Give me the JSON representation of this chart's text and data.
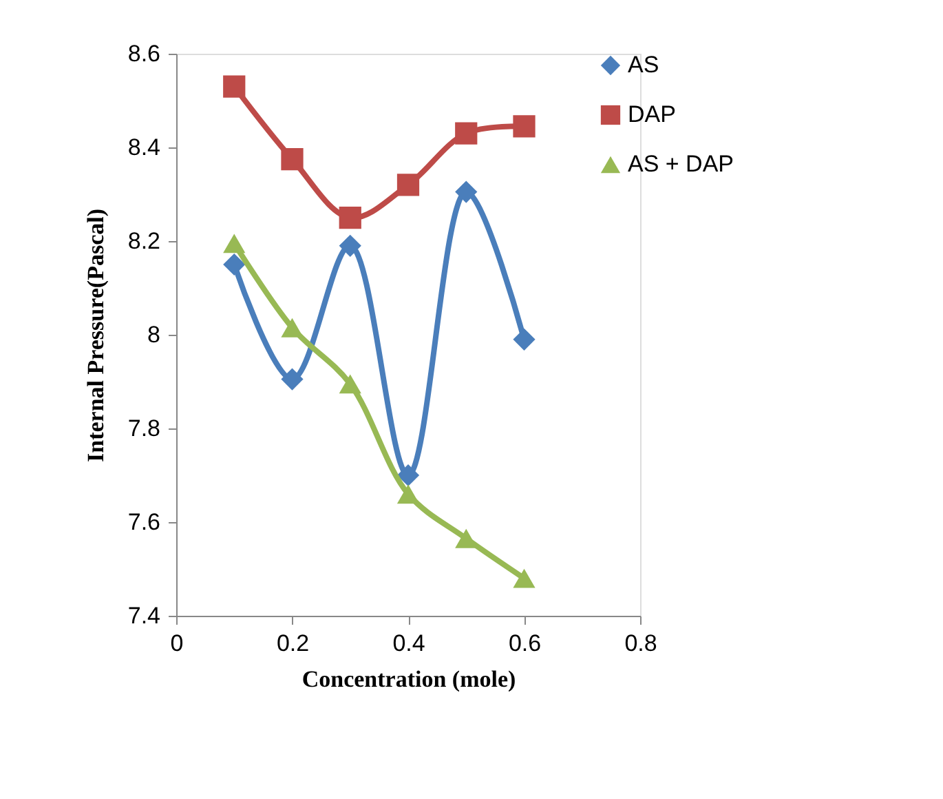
{
  "chart_data": {
    "type": "line",
    "xlabel": "Concentration (mole)",
    "ylabel": "Internal Pressure(Pascal)",
    "x": [
      0.1,
      0.2,
      0.3,
      0.4,
      0.5,
      0.6
    ],
    "series": [
      {
        "name": "AS",
        "color": "#4a7ebb",
        "marker": "diamond",
        "values": [
          8.15,
          7.905,
          8.19,
          7.7,
          8.305,
          7.99
        ]
      },
      {
        "name": "DAP",
        "color": "#be4b48",
        "marker": "square",
        "values": [
          8.53,
          8.375,
          8.25,
          8.32,
          8.43,
          8.445
        ]
      },
      {
        "name": "AS + DAP",
        "color": "#98b954",
        "marker": "triangle",
        "values": [
          8.195,
          8.015,
          7.895,
          7.66,
          7.565,
          7.48
        ]
      }
    ],
    "xlim": [
      0,
      0.8
    ],
    "xticks": [
      0,
      0.2,
      0.4,
      0.6,
      0.8
    ],
    "ylim": [
      7.4,
      8.6
    ],
    "yticks": [
      7.4,
      7.6,
      7.8,
      8,
      8.2,
      8.4,
      8.6
    ],
    "grid": false,
    "legend": "right",
    "line_style": "solid"
  }
}
